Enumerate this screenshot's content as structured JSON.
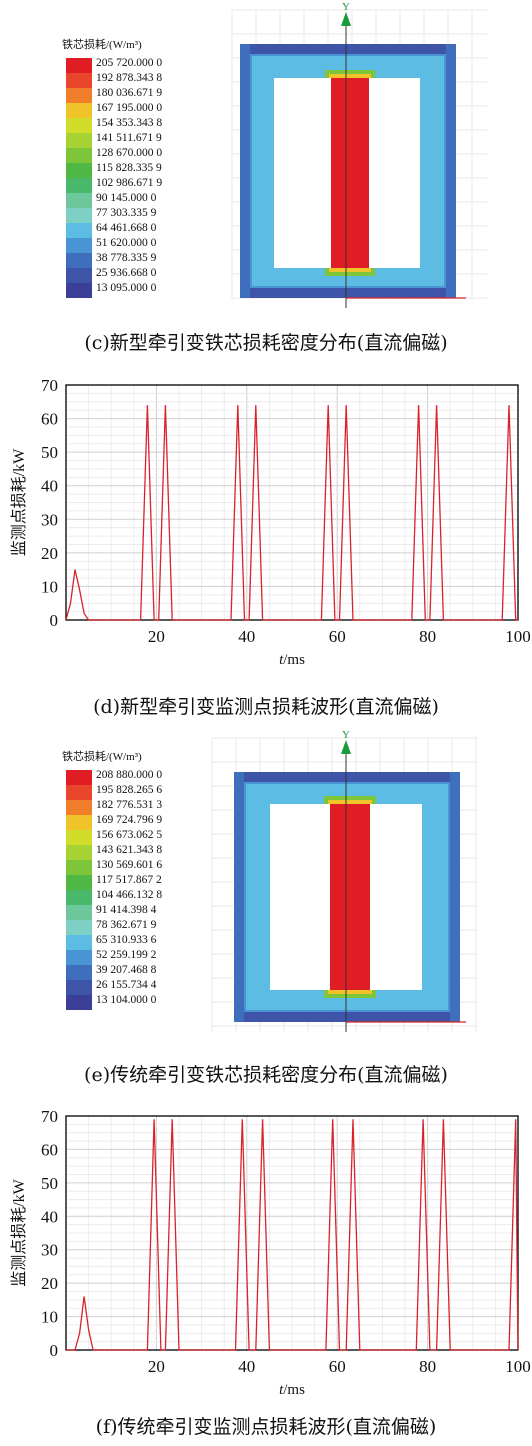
{
  "chart_data": [
    {
      "panel": "c",
      "type": "heatmap",
      "legend_title": "铁芯损耗/(W/m³)",
      "legend_labels": [
        "205 720.000 0",
        "192 878.343 8",
        "180 036.671 9",
        "167 195.000 0",
        "154 353.343 8",
        "141 511.671 9",
        "128 670.000 0",
        "115 828.335 9",
        "102 986.671 9",
        "90 145.000 0",
        "77 303.335 9",
        "64 461.668 0",
        "51 620.000 0",
        "38 778.335 9",
        "25 936.668 0",
        "13 095.000 0"
      ],
      "legend_colors": [
        "#e01c25",
        "#e8452a",
        "#f07e2a",
        "#f0c32a",
        "#d2dc2a",
        "#a7d233",
        "#7ec53a",
        "#4fb845",
        "#4ab86a",
        "#6ec79a",
        "#7fd0c4",
        "#5cbce4",
        "#4a94d4",
        "#3f6fbc",
        "#3d54a8",
        "#3b3f98"
      ],
      "axis_label": "Y",
      "caption": "(c)新型牵引变铁芯损耗密度分布(直流偏磁)"
    },
    {
      "panel": "d",
      "type": "line",
      "xlabel_italic": "t",
      "xlabel_unit": "/ms",
      "ylabel": "监测点损耗/kW",
      "xlim": [
        0,
        100
      ],
      "ylim": [
        0,
        70
      ],
      "xticks": [
        20,
        40,
        60,
        80,
        100
      ],
      "yticks": [
        0,
        10,
        20,
        30,
        40,
        50,
        60,
        70
      ],
      "grid": true,
      "color": "#d8232a",
      "x": [
        0,
        1,
        2,
        3,
        4,
        5,
        6,
        16.5,
        18,
        19.5,
        20.5,
        22,
        23.5,
        36.5,
        38,
        39.5,
        40.5,
        42,
        43.5,
        56.5,
        58,
        59.5,
        60.5,
        62,
        63.5,
        76.5,
        78,
        79.5,
        80.5,
        82,
        83.5,
        96.5,
        98,
        99.5,
        100
      ],
      "y": [
        0,
        5,
        15,
        9,
        2,
        0,
        0,
        0,
        64,
        0,
        0,
        64,
        0,
        0,
        64,
        0,
        0,
        64,
        0,
        0,
        64,
        0,
        0,
        64,
        0,
        0,
        64,
        0,
        0,
        64,
        0,
        0,
        64,
        0,
        0
      ],
      "caption": "(d)新型牵引变监测点损耗波形(直流偏磁)"
    },
    {
      "panel": "e",
      "type": "heatmap",
      "legend_title": "铁芯损耗/(W/m³)",
      "legend_labels": [
        "208 880.000 0",
        "195 828.265 6",
        "182 776.531 3",
        "169 724.796 9",
        "156 673.062 5",
        "143 621.343 8",
        "130 569.601 6",
        "117 517.867 2",
        "104 466.132 8",
        "91 414.398 4",
        "78 362.671 9",
        "65 310.933 6",
        "52 259.199 2",
        "39 207.468 8",
        "26 155.734 4",
        "13 104.000 0"
      ],
      "legend_colors": [
        "#e01c25",
        "#e8452a",
        "#f07e2a",
        "#f0c32a",
        "#d2dc2a",
        "#a7d233",
        "#7ec53a",
        "#4fb845",
        "#4ab86a",
        "#6ec79a",
        "#7fd0c4",
        "#5cbce4",
        "#4a94d4",
        "#3f6fbc",
        "#3d54a8",
        "#3b3f98"
      ],
      "axis_label": "Y",
      "caption": "(e)传统牵引变铁芯损耗密度分布(直流偏磁)"
    },
    {
      "panel": "f",
      "type": "line",
      "xlabel_italic": "t",
      "xlabel_unit": "/ms",
      "ylabel": "监测点损耗/kW",
      "xlim": [
        0,
        100
      ],
      "ylim": [
        0,
        70
      ],
      "xticks": [
        20,
        40,
        60,
        80,
        100
      ],
      "yticks": [
        0,
        10,
        20,
        30,
        40,
        50,
        60,
        70
      ],
      "grid": true,
      "color": "#d8232a",
      "x": [
        0,
        2,
        3,
        4,
        5,
        6,
        18,
        19.5,
        21,
        22,
        23.5,
        25,
        37.5,
        39,
        40.5,
        42,
        43.5,
        45,
        57.5,
        59,
        60.5,
        62,
        63.5,
        65,
        77.5,
        79,
        80.5,
        82,
        83.5,
        85,
        98,
        99.5,
        100
      ],
      "y": [
        0,
        0,
        5,
        16,
        6,
        0,
        0,
        69,
        0,
        0,
        69,
        0,
        0,
        69,
        0,
        0,
        69,
        0,
        0,
        69,
        0,
        0,
        69,
        0,
        0,
        69,
        0,
        0,
        69,
        0,
        0,
        69,
        0
      ],
      "caption": "(f)传统牵引变监测点损耗波形(直流偏磁)"
    }
  ]
}
